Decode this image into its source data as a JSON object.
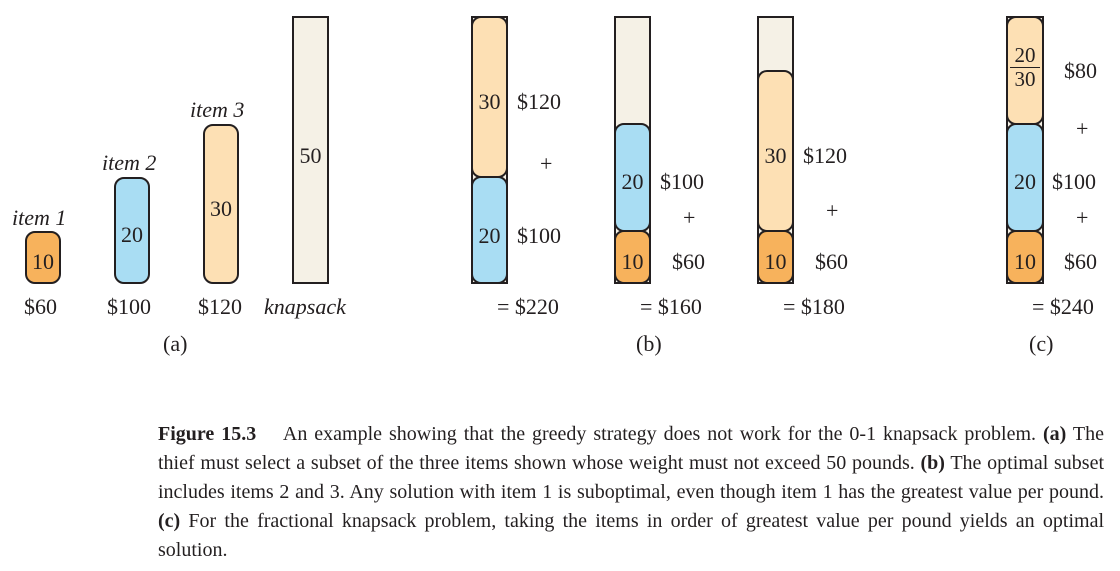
{
  "colors": {
    "item1": "#f7b25c",
    "item2": "#a9ddf3",
    "item3": "#fde0b4",
    "knapsack": "#f5f1e6",
    "outline": "#231f20"
  },
  "panel_a": {
    "items": [
      {
        "name": "item 1",
        "weight": "10",
        "value": "$60"
      },
      {
        "name": "item 2",
        "weight": "20",
        "value": "$100"
      },
      {
        "name": "item 3",
        "weight": "30",
        "value": "$120"
      }
    ],
    "knapsack_capacity": "50",
    "knapsack_label": "knapsack",
    "label": "(a)"
  },
  "panel_b": {
    "label": "(b)",
    "stacks": [
      {
        "top_weight": "30",
        "top_value": "$120",
        "plus": "+",
        "bottom_weight": "20",
        "bottom_value": "$100",
        "total": "= $220"
      },
      {
        "top_weight": "20",
        "top_value": "$100",
        "plus": "+",
        "bottom_weight": "10",
        "bottom_value": "$60",
        "total": "= $160"
      },
      {
        "top_weight": "30",
        "top_value": "$120",
        "plus": "+",
        "bottom_weight": "10",
        "bottom_value": "$60",
        "total": "= $180"
      }
    ]
  },
  "panel_c": {
    "label": "(c)",
    "fraction_num": "20",
    "fraction_den": "30",
    "top_value": "$80",
    "plus1": "+",
    "mid_weight": "20",
    "mid_value": "$100",
    "plus2": "+",
    "bottom_weight": "10",
    "bottom_value": "$60",
    "total": "= $240"
  },
  "caption": {
    "figure_label": "Figure 15.3",
    "intro": "An example showing that the greedy strategy does not work for the 0-1 knapsack problem.",
    "a_label": "(a)",
    "a_text": "The thief must select a subset of the three items shown whose weight must not exceed 50 pounds.",
    "b_label": "(b)",
    "b_text": "The optimal subset includes items 2 and 3. Any solution with item 1 is suboptimal, even though item 1 has the greatest value per pound.",
    "c_label": "(c)",
    "c_text": "For the fractional knapsack problem, taking the items in order of greatest value per pound yields an optimal solution."
  }
}
